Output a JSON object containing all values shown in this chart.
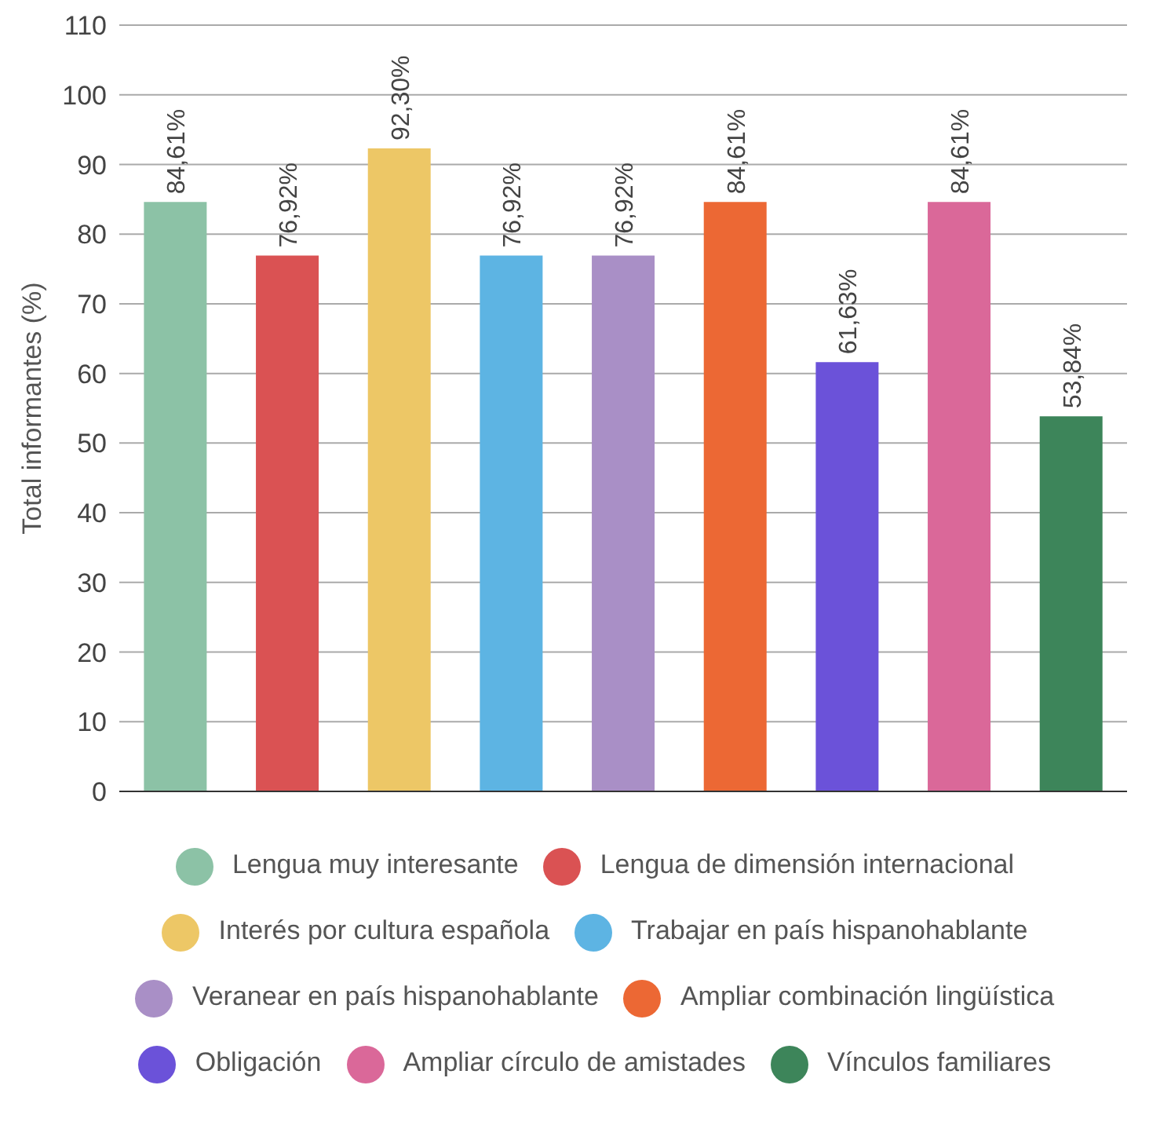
{
  "chart_data": {
    "type": "bar",
    "ylabel": "Total informantes (%)",
    "categories": [
      null,
      null,
      null,
      null,
      null,
      null,
      null,
      null,
      null
    ],
    "series": [
      {
        "name": "Lengua muy interesante",
        "color": "#8cc2a6",
        "values": [
          84.61,
          null,
          null,
          null,
          null,
          null,
          null,
          null,
          null
        ],
        "value_labels": [
          "84,61%",
          null,
          null,
          null,
          null,
          null,
          null,
          null,
          null
        ]
      },
      {
        "name": "Lengua de dimensión internacional",
        "color": "#da5253",
        "values": [
          null,
          76.92,
          null,
          null,
          null,
          null,
          null,
          null,
          null
        ],
        "value_labels": [
          null,
          "76,92%",
          null,
          null,
          null,
          null,
          null,
          null,
          null
        ]
      },
      {
        "name": "Interés por cultura española",
        "color": "#edc766",
        "values": [
          null,
          null,
          92.3,
          null,
          null,
          null,
          null,
          null,
          null
        ],
        "value_labels": [
          null,
          null,
          "92,30%",
          null,
          null,
          null,
          null,
          null,
          null
        ]
      },
      {
        "name": "Trabajar en país hispanohablante",
        "color": "#5db4e3",
        "values": [
          null,
          null,
          null,
          76.92,
          null,
          null,
          null,
          null,
          null
        ],
        "value_labels": [
          null,
          null,
          null,
          "76,92%",
          null,
          null,
          null,
          null,
          null
        ]
      },
      {
        "name": "Veranear en país hispanohablante",
        "color": "#a98fc6",
        "values": [
          null,
          null,
          null,
          null,
          76.92,
          null,
          null,
          null,
          null
        ],
        "value_labels": [
          null,
          null,
          null,
          null,
          "76,92%",
          null,
          null,
          null,
          null
        ]
      },
      {
        "name": "Ampliar combinación lingüística",
        "color": "#ec6834",
        "values": [
          null,
          null,
          null,
          null,
          null,
          84.61,
          null,
          null,
          null
        ],
        "value_labels": [
          null,
          null,
          null,
          null,
          null,
          "84,61%",
          null,
          null,
          null
        ]
      },
      {
        "name": "Obligación",
        "color": "#6b52d9",
        "values": [
          null,
          null,
          null,
          null,
          null,
          null,
          61.63,
          null,
          null
        ],
        "value_labels": [
          null,
          null,
          null,
          null,
          null,
          null,
          "61,63%",
          null,
          null
        ]
      },
      {
        "name": "Ampliar círculo de amistades",
        "color": "#da6899",
        "values": [
          null,
          null,
          null,
          null,
          null,
          null,
          null,
          84.61,
          null
        ],
        "value_labels": [
          null,
          null,
          null,
          null,
          null,
          null,
          null,
          "84,61%",
          null
        ]
      },
      {
        "name": "Vínculos familiares",
        "color": "#3d855a",
        "values": [
          null,
          null,
          null,
          null,
          null,
          null,
          null,
          null,
          53.84
        ],
        "value_labels": [
          null,
          null,
          null,
          null,
          null,
          null,
          null,
          null,
          "53,84%"
        ]
      }
    ],
    "ylim": [
      0,
      110
    ],
    "yticks": [
      0,
      10,
      20,
      30,
      40,
      50,
      60,
      70,
      80,
      90,
      100,
      110
    ],
    "grid": "y",
    "legend": "bottom",
    "tick_labels": "y"
  }
}
